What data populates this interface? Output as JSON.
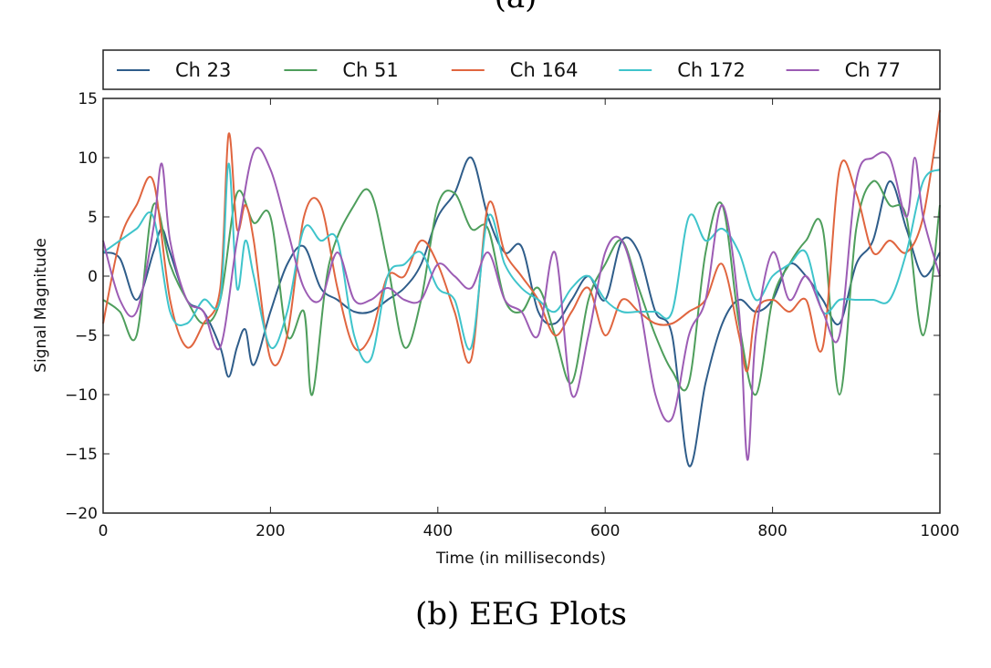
{
  "header_caption": "(a)",
  "chart_data": {
    "type": "line",
    "title": "",
    "caption": "(b) EEG Plots",
    "xlabel": "Time (in milliseconds)",
    "ylabel": "Signal Magnitude",
    "xlim": [
      0,
      1000
    ],
    "ylim": [
      -20,
      15
    ],
    "xticks": [
      0,
      200,
      400,
      600,
      800,
      1000
    ],
    "yticks": [
      -20,
      -15,
      -10,
      -5,
      0,
      5,
      10,
      15
    ],
    "grid": false,
    "legend_placement": "top, outside, single row",
    "series": [
      {
        "name": "Ch 23",
        "color": "#2f5d8a",
        "x": [
          0,
          20,
          40,
          60,
          70,
          80,
          100,
          120,
          140,
          150,
          160,
          170,
          180,
          200,
          220,
          240,
          260,
          280,
          300,
          320,
          340,
          360,
          380,
          400,
          420,
          440,
          460,
          480,
          500,
          520,
          540,
          560,
          580,
          600,
          620,
          640,
          660,
          680,
          700,
          720,
          740,
          760,
          780,
          800,
          820,
          840,
          860,
          880,
          900,
          920,
          940,
          960,
          980,
          1000
        ],
        "y": [
          2,
          1.5,
          -2,
          2,
          4,
          2,
          -2,
          -3,
          -6,
          -8.5,
          -6,
          -4.5,
          -7.5,
          -3,
          1,
          2.5,
          -1,
          -2,
          -3,
          -3,
          -2,
          -1,
          1,
          5,
          7,
          10,
          5,
          2,
          2.5,
          -3,
          -4,
          -2,
          0,
          -2,
          3,
          2,
          -3,
          -5,
          -16,
          -9,
          -4,
          -2,
          -3,
          -2,
          1,
          0,
          -2,
          -4,
          1,
          3,
          8,
          4,
          0,
          2
        ]
      },
      {
        "name": "Ch 51",
        "color": "#4e9e5c",
        "x": [
          0,
          20,
          40,
          60,
          80,
          100,
          120,
          140,
          160,
          180,
          200,
          220,
          240,
          250,
          270,
          300,
          320,
          340,
          360,
          380,
          400,
          420,
          440,
          460,
          480,
          500,
          520,
          540,
          560,
          580,
          600,
          620,
          640,
          660,
          680,
          700,
          720,
          740,
          760,
          780,
          800,
          820,
          840,
          860,
          880,
          900,
          920,
          940,
          960,
          980,
          1000
        ],
        "y": [
          -2,
          -3,
          -5,
          6,
          1,
          -2,
          -4,
          -2,
          7,
          4.5,
          5,
          -5,
          -3,
          -10,
          1,
          6,
          7,
          1,
          -6,
          -2,
          6,
          7,
          4,
          4,
          -2,
          -3,
          -1,
          -5,
          -9,
          -2,
          1,
          3,
          -1,
          -5,
          -8,
          -9,
          2,
          6,
          -4,
          -10,
          -2,
          1,
          3,
          4,
          -10,
          4,
          8,
          6,
          5,
          -5,
          6
        ]
      },
      {
        "name": "Ch 164",
        "color": "#e0653f",
        "x": [
          0,
          20,
          40,
          60,
          80,
          100,
          120,
          140,
          150,
          160,
          170,
          180,
          200,
          220,
          240,
          260,
          280,
          300,
          320,
          340,
          360,
          380,
          400,
          420,
          440,
          460,
          480,
          500,
          520,
          540,
          560,
          580,
          600,
          620,
          640,
          660,
          680,
          700,
          720,
          740,
          760,
          770,
          780,
          800,
          820,
          840,
          860,
          880,
          900,
          920,
          940,
          960,
          980,
          1000
        ],
        "y": [
          -4,
          3,
          6,
          8,
          -2,
          -6,
          -4,
          -1,
          12,
          4,
          6,
          3,
          -7,
          -5,
          5,
          6,
          -1,
          -6,
          -5,
          0,
          0,
          3,
          1,
          -3,
          -7,
          6,
          2,
          0,
          -2,
          -5,
          -3,
          -1,
          -5,
          -2,
          -3,
          -4,
          -4,
          -3,
          -2,
          1,
          -5,
          -8,
          -3,
          -2,
          -3,
          -2,
          -6,
          9,
          7,
          2,
          3,
          2,
          5,
          14
        ]
      },
      {
        "name": "Ch 172",
        "color": "#3fc4cb",
        "x": [
          0,
          20,
          40,
          60,
          80,
          100,
          120,
          140,
          150,
          160,
          170,
          180,
          200,
          220,
          240,
          260,
          280,
          300,
          320,
          340,
          360,
          380,
          400,
          420,
          440,
          460,
          480,
          500,
          520,
          540,
          560,
          580,
          600,
          620,
          640,
          660,
          680,
          700,
          720,
          740,
          760,
          780,
          800,
          820,
          840,
          860,
          880,
          900,
          920,
          940,
          960,
          980,
          1000
        ],
        "y": [
          2,
          3,
          4,
          5,
          -3,
          -4,
          -2,
          -2,
          9.5,
          -1,
          3,
          0,
          -6,
          -3,
          4,
          3,
          3,
          -5,
          -7,
          0,
          1,
          2,
          -1,
          -2,
          -6,
          5,
          1,
          -1,
          -2,
          -3,
          -1,
          0,
          -2,
          -3,
          -3,
          -3,
          -3,
          5,
          3,
          4,
          2,
          -2,
          0,
          1,
          2,
          -3,
          -2,
          -2,
          -2,
          -2,
          2,
          8,
          9
        ]
      },
      {
        "name": "Ch 77",
        "color": "#9c5cb4",
        "x": [
          0,
          20,
          40,
          60,
          70,
          80,
          100,
          120,
          140,
          160,
          180,
          200,
          220,
          240,
          260,
          280,
          300,
          320,
          340,
          360,
          380,
          400,
          420,
          440,
          460,
          480,
          500,
          520,
          540,
          560,
          580,
          600,
          620,
          640,
          660,
          680,
          700,
          720,
          740,
          760,
          770,
          780,
          800,
          820,
          840,
          860,
          880,
          900,
          920,
          940,
          960,
          970,
          980,
          1000
        ],
        "y": [
          3,
          -2,
          -3,
          4,
          9.5,
          3,
          -2,
          -3,
          -6,
          3,
          10.5,
          9,
          4,
          -1,
          -2,
          2,
          -2,
          -2,
          -1,
          -2,
          -2,
          1,
          0,
          -1,
          2,
          -2,
          -3,
          -5,
          2,
          -10,
          -5,
          2,
          3,
          -2,
          -10,
          -12,
          -5,
          -2,
          6,
          -3,
          -15.5,
          -5,
          2,
          -2,
          0,
          -3,
          -5,
          8,
          10,
          10,
          5,
          10,
          5,
          0
        ]
      }
    ]
  }
}
